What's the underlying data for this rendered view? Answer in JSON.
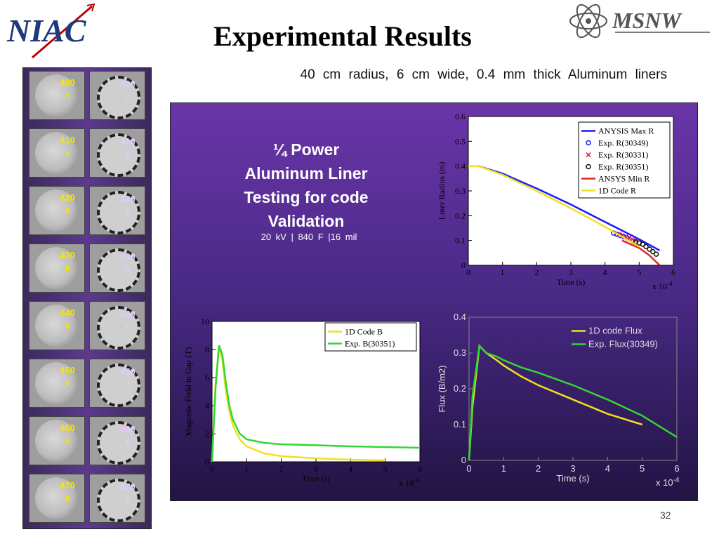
{
  "header": {
    "title": "Experimental Results",
    "left_logo_text": "NIAC",
    "right_logo_text": "MSNW",
    "subtitle": "40 cm radius, 6 cm wide, 0.4 mm thick Aluminum liners"
  },
  "image_strip": {
    "rows": [
      {
        "left_label": [
          "400",
          "s"
        ],
        "right_label": [
          "400",
          "s"
        ]
      },
      {
        "left_label": [
          "410",
          "s"
        ],
        "right_label": [
          "410",
          "s"
        ]
      },
      {
        "left_label": [
          "420",
          "s"
        ],
        "right_label": [
          "420",
          "s"
        ]
      },
      {
        "left_label": [
          "430",
          "s"
        ],
        "right_label": [
          "430",
          "s"
        ]
      },
      {
        "left_label": [
          "440",
          "s"
        ],
        "right_label": [
          "440",
          "s"
        ]
      },
      {
        "left_label": [
          "450",
          "s"
        ],
        "right_label": [
          "450",
          "s"
        ]
      },
      {
        "left_label": [
          "460",
          "s"
        ],
        "right_label": [
          "460",
          "s"
        ]
      },
      {
        "left_label": [
          "470",
          "s"
        ],
        "right_label": [
          "470",
          "s"
        ]
      }
    ]
  },
  "panel": {
    "heading_lines": [
      "¼ Power",
      "Aluminum Liner",
      "Testing for code",
      "Validation"
    ],
    "specs": "20 kV | 840 F |16 mil"
  },
  "page_number": "32",
  "chart_data": [
    {
      "type": "line",
      "xlabel": "Time (s)",
      "ylabel": "Liner Radius (m)",
      "x_multiplier": "x 10-4",
      "xlim": [
        0,
        6
      ],
      "ylim": [
        0,
        0.6
      ],
      "xticks": [
        "0",
        "1",
        "2",
        "3",
        "4",
        "5",
        "6"
      ],
      "yticks": [
        "0",
        "0.1",
        "0.2",
        "0.3",
        "0.4",
        "0.5",
        "0.6"
      ],
      "legend_position": "top-right",
      "series": [
        {
          "name": "ANYSIS Max R",
          "color": "#1a1aff",
          "style": "line",
          "x": [
            0,
            0.3,
            1,
            2,
            3,
            4,
            4.5,
            5,
            5.6
          ],
          "y": [
            0.4,
            0.4,
            0.37,
            0.31,
            0.245,
            0.175,
            0.14,
            0.105,
            0.06
          ]
        },
        {
          "name": "Exp. R(30349)",
          "color": "#1a1aff",
          "style": "circle",
          "x": [
            4.25,
            4.35,
            4.45,
            4.55,
            4.65
          ],
          "y": [
            0.13,
            0.125,
            0.12,
            0.115,
            0.11
          ]
        },
        {
          "name": "Exp. R(30331)",
          "color": "#d4145a",
          "style": "x",
          "x": [
            4.4,
            4.5,
            4.6,
            4.7,
            4.8,
            4.9
          ],
          "y": [
            0.125,
            0.12,
            0.115,
            0.11,
            0.105,
            0.1
          ]
        },
        {
          "name": "Exp. R(30351)",
          "color": "#111111",
          "style": "circle",
          "x": [
            4.9,
            5.0,
            5.1,
            5.2,
            5.3,
            5.4,
            5.5
          ],
          "y": [
            0.095,
            0.09,
            0.085,
            0.075,
            0.065,
            0.055,
            0.045
          ]
        },
        {
          "name": "ANSYS Min R",
          "color": "#e0202a",
          "style": "line",
          "x": [
            4.5,
            5.0,
            5.3,
            5.6
          ],
          "y": [
            0.1,
            0.07,
            0.04,
            0.0
          ]
        },
        {
          "name": "1D Code R",
          "color": "#f0e020",
          "style": "line",
          "x": [
            0,
            0.3,
            1,
            2,
            3,
            4,
            4.5,
            5.0
          ],
          "y": [
            0.4,
            0.4,
            0.365,
            0.3,
            0.23,
            0.155,
            0.115,
            0.075
          ]
        }
      ]
    },
    {
      "type": "line",
      "xlabel": "Time (s)",
      "ylabel": "Magnetic Field in Gap (T)",
      "x_multiplier": "x 10-4",
      "xlim": [
        0,
        6
      ],
      "ylim": [
        0,
        10
      ],
      "xticks": [
        "0",
        "1",
        "2",
        "3",
        "4",
        "5",
        "6"
      ],
      "yticks": [
        "0",
        "2",
        "4",
        "6",
        "8",
        "10"
      ],
      "legend_position": "top-right",
      "series": [
        {
          "name": "1D Code B",
          "color": "#f0e020",
          "x": [
            0,
            0.1,
            0.2,
            0.3,
            0.4,
            0.5,
            0.6,
            0.8,
            1.0,
            1.5,
            2.0,
            3.0,
            4.0,
            5.0
          ],
          "y": [
            0,
            5.5,
            8.2,
            7.2,
            5.0,
            3.6,
            2.6,
            1.6,
            1.1,
            0.6,
            0.4,
            0.25,
            0.15,
            0.1
          ]
        },
        {
          "name": "Exp. B(30351)",
          "color": "#33d633",
          "x": [
            0,
            0.1,
            0.2,
            0.3,
            0.4,
            0.5,
            0.6,
            0.8,
            1.0,
            1.5,
            2.0,
            3.0,
            4.0,
            5.0,
            6.0
          ],
          "y": [
            0,
            5.2,
            8.3,
            7.6,
            5.6,
            4.0,
            3.0,
            2.0,
            1.6,
            1.35,
            1.25,
            1.18,
            1.1,
            1.05,
            1.0
          ]
        }
      ]
    },
    {
      "type": "line",
      "xlabel": "Time (s)",
      "ylabel": "Flux (B/m2)",
      "x_multiplier": "x 10-4",
      "xlim": [
        0,
        6
      ],
      "ylim": [
        0,
        0.4
      ],
      "xticks": [
        "0",
        "1",
        "2",
        "3",
        "4",
        "5",
        "6"
      ],
      "yticks": [
        "0",
        "0.1",
        "0.2",
        "0.3",
        "0.4"
      ],
      "legend_position": "top-right",
      "series": [
        {
          "name": "1D code Flux",
          "color": "#f0e020",
          "x": [
            0,
            0.1,
            0.3,
            0.5,
            0.8,
            1.0,
            1.5,
            2.0,
            3.0,
            4.0,
            5.0
          ],
          "y": [
            0,
            0.15,
            0.32,
            0.3,
            0.28,
            0.265,
            0.235,
            0.21,
            0.17,
            0.13,
            0.1
          ]
        },
        {
          "name": "Exp. Flux(30349)",
          "color": "#33d633",
          "x": [
            0,
            0.1,
            0.3,
            0.5,
            0.8,
            1.0,
            1.5,
            2.0,
            3.0,
            4.0,
            5.0,
            6.0
          ],
          "y": [
            0,
            0.18,
            0.32,
            0.3,
            0.29,
            0.28,
            0.26,
            0.245,
            0.21,
            0.17,
            0.125,
            0.065
          ]
        }
      ]
    }
  ]
}
